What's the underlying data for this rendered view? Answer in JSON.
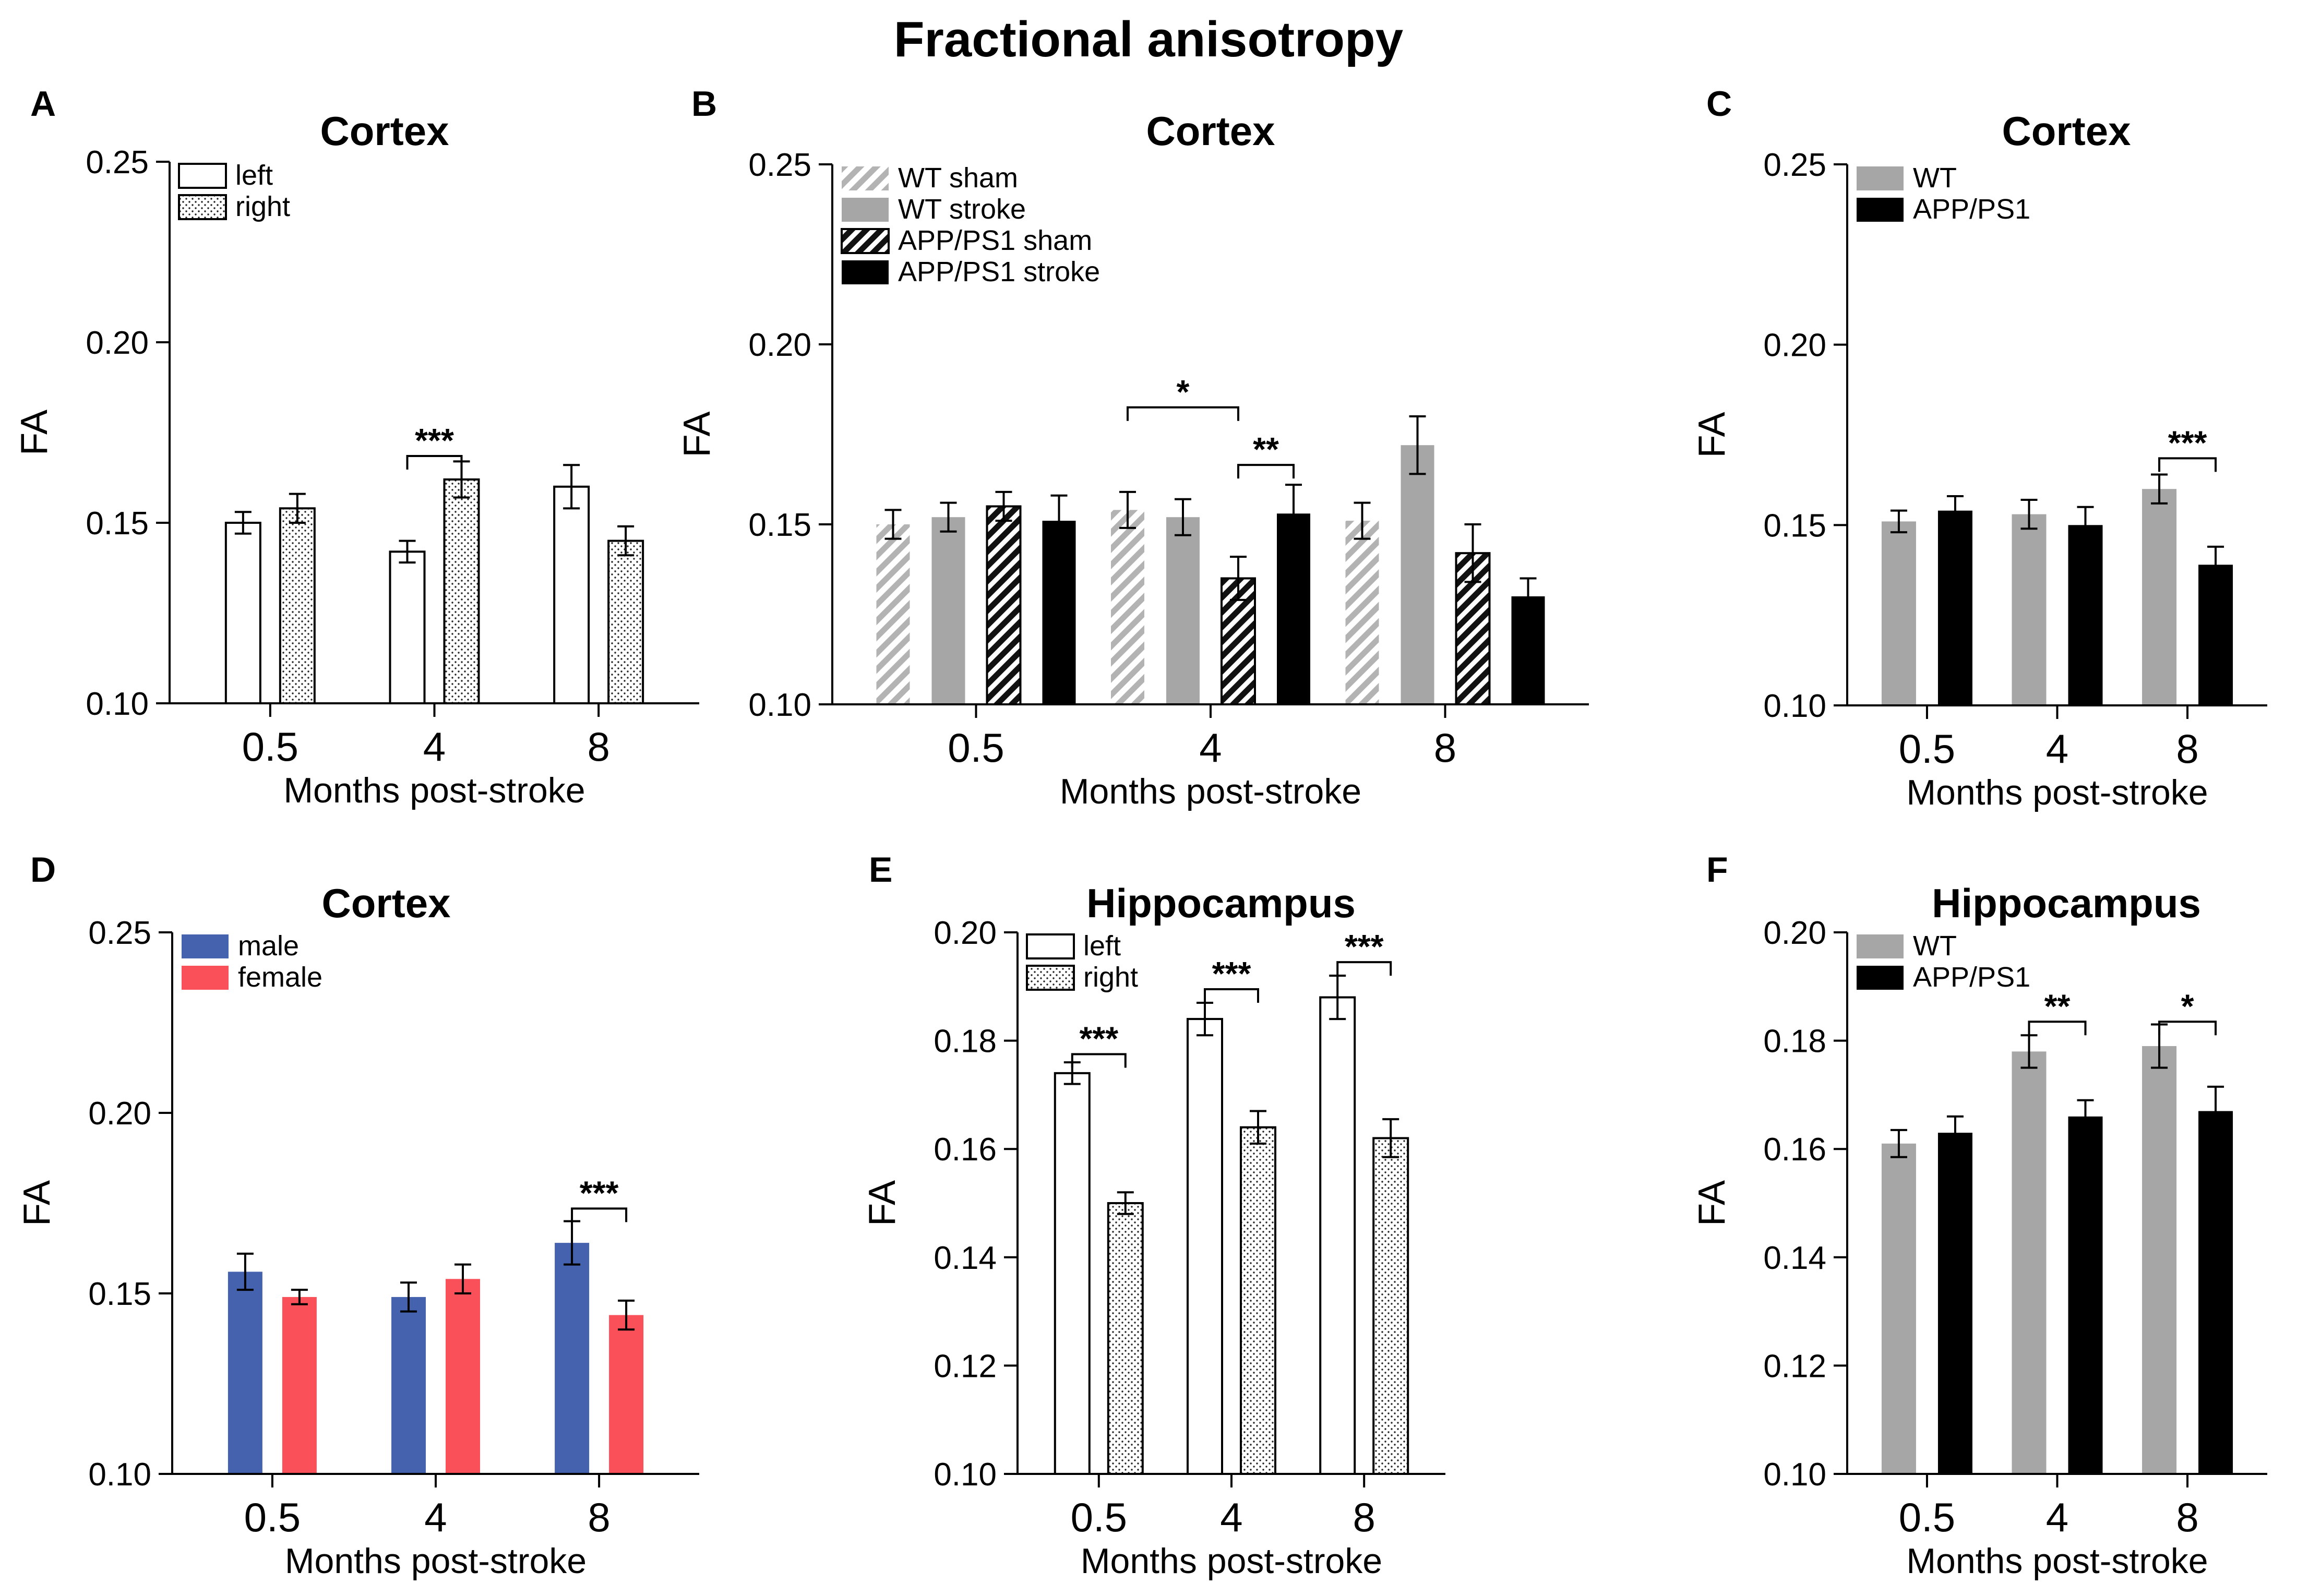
{
  "figure": {
    "title": "Fractional anisotropy"
  },
  "colors": {
    "white_fill": "#ffffff",
    "wt": "#a6a6a6",
    "app": "#000000",
    "male": "#4562ae",
    "female": "#f9505a"
  },
  "chart_data": [
    {
      "panel": "A",
      "title": "Cortex",
      "type": "bar",
      "xlabel": "Months post-stroke",
      "ylabel": "FA",
      "categories": [
        "0.5",
        "4",
        "8"
      ],
      "ylim": [
        0.1,
        0.25
      ],
      "yticks": [
        "0.10",
        "0.15",
        "0.20",
        "0.25"
      ],
      "series": [
        {
          "name": "left",
          "style": "white",
          "values": [
            0.15,
            0.142,
            0.16
          ],
          "errors": [
            0.003,
            0.003,
            0.006
          ]
        },
        {
          "name": "right",
          "style": "dots",
          "values": [
            0.154,
            0.162,
            0.145
          ],
          "errors": [
            0.004,
            0.005,
            0.004
          ]
        }
      ],
      "significance": [
        {
          "label": "***",
          "from": [
            1,
            0
          ],
          "to": [
            1,
            1
          ],
          "y": 0.1685
        }
      ]
    },
    {
      "panel": "B",
      "title": "Cortex",
      "type": "bar",
      "xlabel": "Months post-stroke",
      "ylabel": "FA",
      "categories": [
        "0.5",
        "4",
        "8"
      ],
      "ylim": [
        0.1,
        0.25
      ],
      "yticks": [
        "0.10",
        "0.15",
        "0.20",
        "0.25"
      ],
      "series": [
        {
          "name": "WT sham",
          "style": "hatch-grey",
          "values": [
            0.15,
            0.154,
            0.151
          ],
          "errors": [
            0.004,
            0.005,
            0.005
          ]
        },
        {
          "name": "WT stroke",
          "style": "grey",
          "values": [
            0.152,
            0.152,
            0.172
          ],
          "errors": [
            0.004,
            0.005,
            0.008
          ]
        },
        {
          "name": "APP/PS1 sham",
          "style": "hatch-black",
          "values": [
            0.155,
            0.135,
            0.142
          ],
          "errors": [
            0.004,
            0.006,
            0.008
          ]
        },
        {
          "name": "APP/PS1 stroke",
          "style": "black",
          "values": [
            0.151,
            0.153,
            0.13
          ],
          "errors": [
            0.007,
            0.008,
            0.005
          ]
        }
      ],
      "significance": [
        {
          "label": "*",
          "from": [
            1,
            0
          ],
          "to": [
            1,
            2
          ],
          "y": 0.1825
        },
        {
          "label": "**",
          "from": [
            1,
            2
          ],
          "to": [
            1,
            3
          ],
          "y": 0.1665
        }
      ]
    },
    {
      "panel": "C",
      "title": "Cortex",
      "type": "bar",
      "xlabel": "Months post-stroke",
      "ylabel": "FA",
      "categories": [
        "0.5",
        "4",
        "8"
      ],
      "ylim": [
        0.1,
        0.25
      ],
      "yticks": [
        "0.10",
        "0.15",
        "0.20",
        "0.25"
      ],
      "series": [
        {
          "name": "WT",
          "style": "grey",
          "values": [
            0.151,
            0.153,
            0.16
          ],
          "errors": [
            0.003,
            0.004,
            0.004
          ]
        },
        {
          "name": "APP/PS1",
          "style": "black",
          "values": [
            0.154,
            0.15,
            0.139
          ],
          "errors": [
            0.004,
            0.005,
            0.005
          ]
        }
      ],
      "significance": [
        {
          "label": "***",
          "from": [
            2,
            0
          ],
          "to": [
            2,
            1
          ],
          "y": 0.1685
        }
      ]
    },
    {
      "panel": "D",
      "title": "Cortex",
      "type": "bar",
      "xlabel": "Months post-stroke",
      "ylabel": "FA",
      "categories": [
        "0.5",
        "4",
        "8"
      ],
      "ylim": [
        0.1,
        0.25
      ],
      "yticks": [
        "0.10",
        "0.15",
        "0.20",
        "0.25"
      ],
      "series": [
        {
          "name": "male",
          "style": "blue",
          "values": [
            0.156,
            0.149,
            0.164
          ],
          "errors": [
            0.005,
            0.004,
            0.006
          ]
        },
        {
          "name": "female",
          "style": "red",
          "values": [
            0.149,
            0.154,
            0.144
          ],
          "errors": [
            0.002,
            0.004,
            0.004
          ]
        }
      ],
      "significance": [
        {
          "label": "***",
          "from": [
            2,
            0
          ],
          "to": [
            2,
            1
          ],
          "y": 0.1735
        }
      ]
    },
    {
      "panel": "E",
      "title": "Hippocampus",
      "type": "bar",
      "xlabel": "Months post-stroke",
      "ylabel": "FA",
      "categories": [
        "0.5",
        "4",
        "8"
      ],
      "ylim": [
        0.1,
        0.2
      ],
      "yticks": [
        "0.10",
        "0.12",
        "0.14",
        "0.16",
        "0.18",
        "0.20"
      ],
      "series": [
        {
          "name": "left",
          "style": "white",
          "values": [
            0.174,
            0.184,
            0.188
          ],
          "errors": [
            0.002,
            0.003,
            0.004
          ]
        },
        {
          "name": "right",
          "style": "dots",
          "values": [
            0.15,
            0.164,
            0.162
          ],
          "errors": [
            0.002,
            0.003,
            0.0035
          ]
        }
      ],
      "significance": [
        {
          "label": "***",
          "from": [
            0,
            0
          ],
          "to": [
            0,
            1
          ],
          "y": 0.1775
        },
        {
          "label": "***",
          "from": [
            1,
            0
          ],
          "to": [
            1,
            1
          ],
          "y": 0.1895
        },
        {
          "label": "***",
          "from": [
            2,
            0
          ],
          "to": [
            2,
            1
          ],
          "y": 0.1945
        }
      ]
    },
    {
      "panel": "F",
      "title": "Hippocampus",
      "type": "bar",
      "xlabel": "Months post-stroke",
      "ylabel": "FA",
      "categories": [
        "0.5",
        "4",
        "8"
      ],
      "ylim": [
        0.1,
        0.2
      ],
      "yticks": [
        "0.10",
        "0.12",
        "0.14",
        "0.16",
        "0.18",
        "0.20"
      ],
      "series": [
        {
          "name": "WT",
          "style": "grey",
          "values": [
            0.161,
            0.178,
            0.179
          ],
          "errors": [
            0.0025,
            0.003,
            0.004
          ]
        },
        {
          "name": "APP/PS1",
          "style": "black",
          "values": [
            0.163,
            0.166,
            0.167
          ],
          "errors": [
            0.003,
            0.003,
            0.0045
          ]
        }
      ],
      "significance": [
        {
          "label": "**",
          "from": [
            1,
            0
          ],
          "to": [
            1,
            1
          ],
          "y": 0.1835
        },
        {
          "label": "*",
          "from": [
            2,
            0
          ],
          "to": [
            2,
            1
          ],
          "y": 0.1835
        }
      ]
    }
  ]
}
